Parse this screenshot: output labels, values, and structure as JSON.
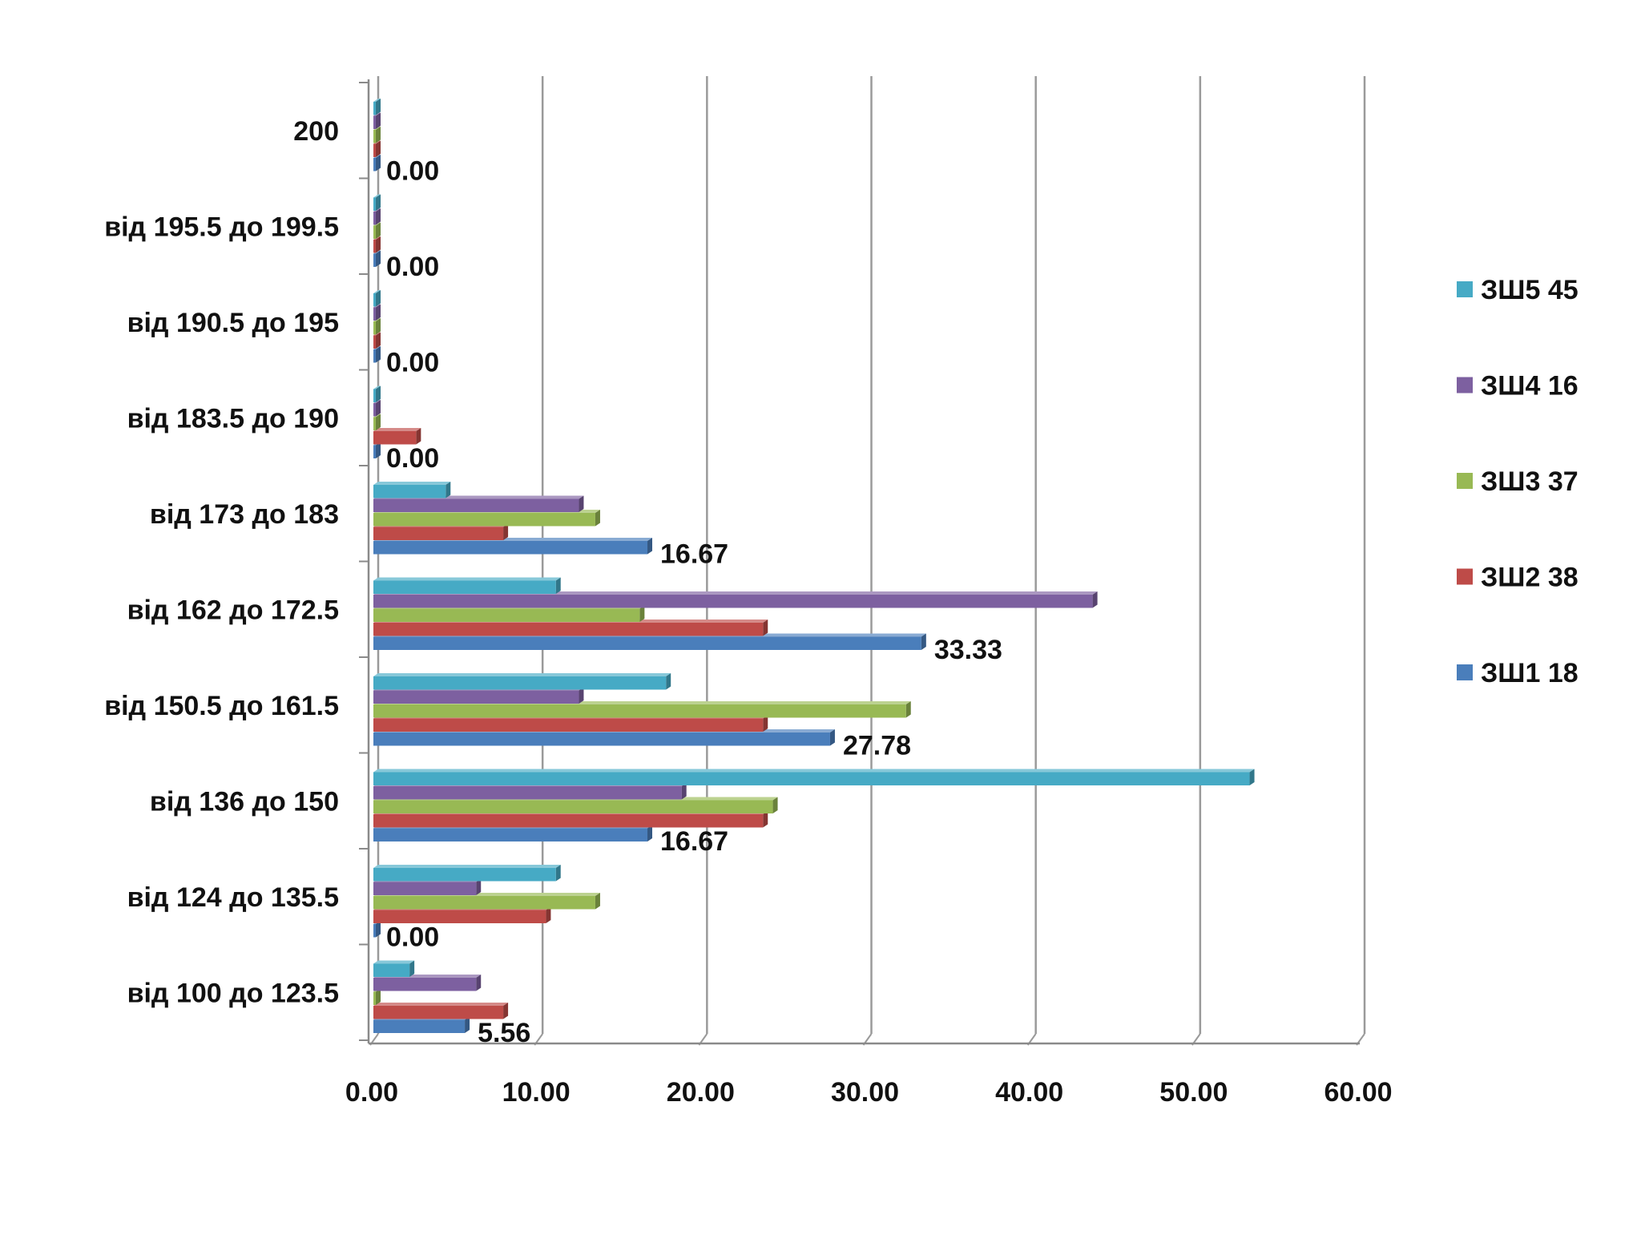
{
  "chart_data": {
    "type": "bar",
    "orientation": "horizontal",
    "style": "3d-clustered",
    "categories": [
      "від 100 до 123.5",
      "від 124 до 135.5",
      "від 136 до 150",
      "від 150.5 до 161.5",
      "від 162 до 172.5",
      "від 173 до 183",
      "від 183.5 до 190",
      "від 190.5 до 195",
      "від 195.5 до 199.5",
      "200"
    ],
    "series": [
      {
        "name": "ЗШ1 18",
        "color": "#4a7ebb",
        "values": [
          5.56,
          0.0,
          16.67,
          27.78,
          33.33,
          16.67,
          0.0,
          0.0,
          0.0,
          0.0
        ]
      },
      {
        "name": "ЗШ2 38",
        "color": "#be4b48",
        "values": [
          7.9,
          10.5,
          23.7,
          23.7,
          23.7,
          7.9,
          2.6,
          0.0,
          0.0,
          0.0
        ]
      },
      {
        "name": "ЗШ3 37",
        "color": "#98b954",
        "values": [
          0.0,
          13.5,
          24.3,
          32.4,
          16.2,
          13.5,
          0.0,
          0.0,
          0.0,
          0.0
        ]
      },
      {
        "name": "ЗШ4 16",
        "color": "#7d60a0",
        "values": [
          6.25,
          6.25,
          18.75,
          12.5,
          43.75,
          12.5,
          0.0,
          0.0,
          0.0,
          0.0
        ]
      },
      {
        "name": "ЗШ5 45",
        "color": "#46aac5",
        "values": [
          2.2,
          11.1,
          53.3,
          17.8,
          11.1,
          4.4,
          0.0,
          0.0,
          0.0,
          0.0
        ]
      }
    ],
    "data_labels": {
      "series": "ЗШ1 18",
      "values": [
        "5.56",
        "0.00",
        "16.67",
        "27.78",
        "33.33",
        "16.67",
        "0.00",
        "0.00",
        "0.00",
        "0.00"
      ]
    },
    "x_ticks": [
      "0.00",
      "10.00",
      "20.00",
      "30.00",
      "40.00",
      "50.00",
      "60.00"
    ],
    "xlim": [
      0,
      60
    ],
    "grid": "vertical",
    "legend_position": "right",
    "title": "",
    "xlabel": "",
    "ylabel": ""
  }
}
